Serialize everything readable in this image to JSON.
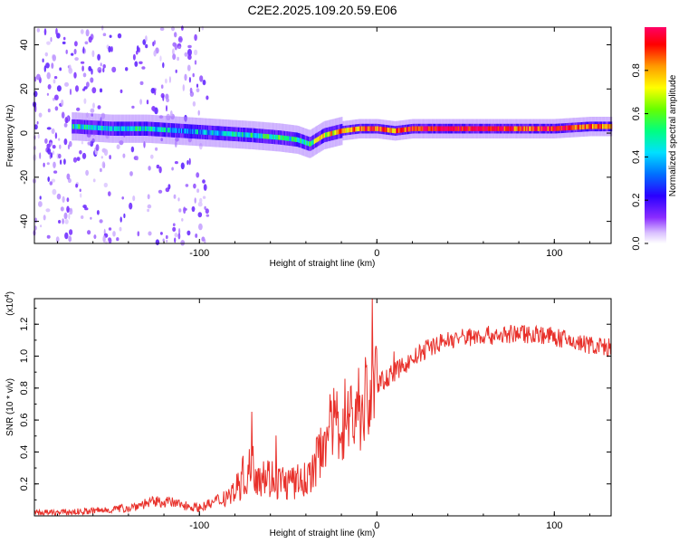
{
  "title": "C2E2.2025.109.20.59.E06",
  "colors": {
    "snr_line": "#e8302a",
    "spectrum_ridge": "#e8302a",
    "colormap": [
      "#ffffff",
      "#c8a6ff",
      "#7a2cff",
      "#2a00ff",
      "#0080ff",
      "#00e0ff",
      "#00ff80",
      "#66ff00",
      "#ffff00",
      "#ff9900",
      "#ff0000",
      "#ff0066"
    ]
  },
  "chart_data": [
    {
      "type": "heatmap",
      "name": "spectrogram",
      "xlabel": "Height of straight line (km)",
      "ylabel": "Frequency (Hz)",
      "xlim": [
        -193,
        132
      ],
      "ylim": [
        -50,
        48
      ],
      "xticks": [
        -100,
        0,
        100
      ],
      "yticks": [
        -40,
        -20,
        0,
        20,
        40
      ],
      "xtick_labels": [
        "-100",
        "0",
        "100"
      ],
      "ytick_labels": [
        "-40",
        "-20",
        "0",
        "20",
        "40"
      ],
      "ridge": {
        "x": [
          -170,
          -150,
          -130,
          -110,
          -90,
          -70,
          -55,
          -45,
          -38,
          -30,
          -20,
          -10,
          0,
          10,
          20,
          40,
          60,
          80,
          100,
          120,
          132
        ],
        "freq_hz": [
          3,
          2,
          2,
          1,
          0,
          -1,
          -2,
          -3,
          -5,
          -1,
          1,
          2,
          2,
          1,
          2,
          2,
          2,
          2,
          2,
          3,
          3
        ],
        "peak_amplitude": [
          0.5,
          0.45,
          0.5,
          0.4,
          0.45,
          0.5,
          0.55,
          0.5,
          0.6,
          0.7,
          0.8,
          0.85,
          0.9,
          0.8,
          0.95,
          0.98,
          0.95,
          0.9,
          0.92,
          0.85,
          0.8
        ]
      },
      "noise_region_x": [
        -193,
        -95
      ]
    },
    {
      "type": "colorbar",
      "name": "amplitude-colorbar",
      "label": "Normalized spectral amplitude",
      "range": [
        0,
        1
      ],
      "ticks": [
        0.0,
        0.2,
        0.4,
        0.6,
        0.8
      ],
      "tick_labels": [
        "0.0",
        "0.2",
        "0.4",
        "0.6",
        "0.8"
      ]
    },
    {
      "type": "line",
      "name": "snr",
      "xlabel": "Height of straight line (km)",
      "ylabel": "SNR (10 * v/v)",
      "yscale_label": "(x10",
      "yscale_exponent": "4",
      "xlim": [
        -193,
        132
      ],
      "ylim": [
        0,
        1.36
      ],
      "xticks": [
        -100,
        0,
        100
      ],
      "xtick_labels": [
        "-100",
        "0",
        "100"
      ],
      "yticks": [
        0.2,
        0.4,
        0.6,
        0.8,
        1.0,
        1.2
      ],
      "ytick_labels": [
        "0.2",
        "0.4",
        "0.6",
        "0.8",
        "1.0",
        "1.2"
      ],
      "series": [
        {
          "name": "SNR",
          "x": [
            -193,
            -180,
            -160,
            -140,
            -130,
            -120,
            -110,
            -100,
            -90,
            -80,
            -75,
            -70,
            -60,
            -50,
            -40,
            -35,
            -30,
            -25,
            -20,
            -15,
            -10,
            -5,
            0,
            10,
            20,
            30,
            40,
            50,
            60,
            70,
            80,
            90,
            100,
            110,
            120,
            132
          ],
          "y": [
            0.02,
            0.02,
            0.03,
            0.05,
            0.08,
            0.09,
            0.07,
            0.05,
            0.09,
            0.16,
            0.25,
            0.3,
            0.24,
            0.2,
            0.22,
            0.3,
            0.5,
            0.55,
            0.6,
            0.63,
            0.68,
            0.73,
            0.82,
            0.9,
            0.98,
            1.06,
            1.1,
            1.12,
            1.13,
            1.13,
            1.14,
            1.14,
            1.12,
            1.09,
            1.07,
            1.05
          ]
        }
      ]
    }
  ]
}
